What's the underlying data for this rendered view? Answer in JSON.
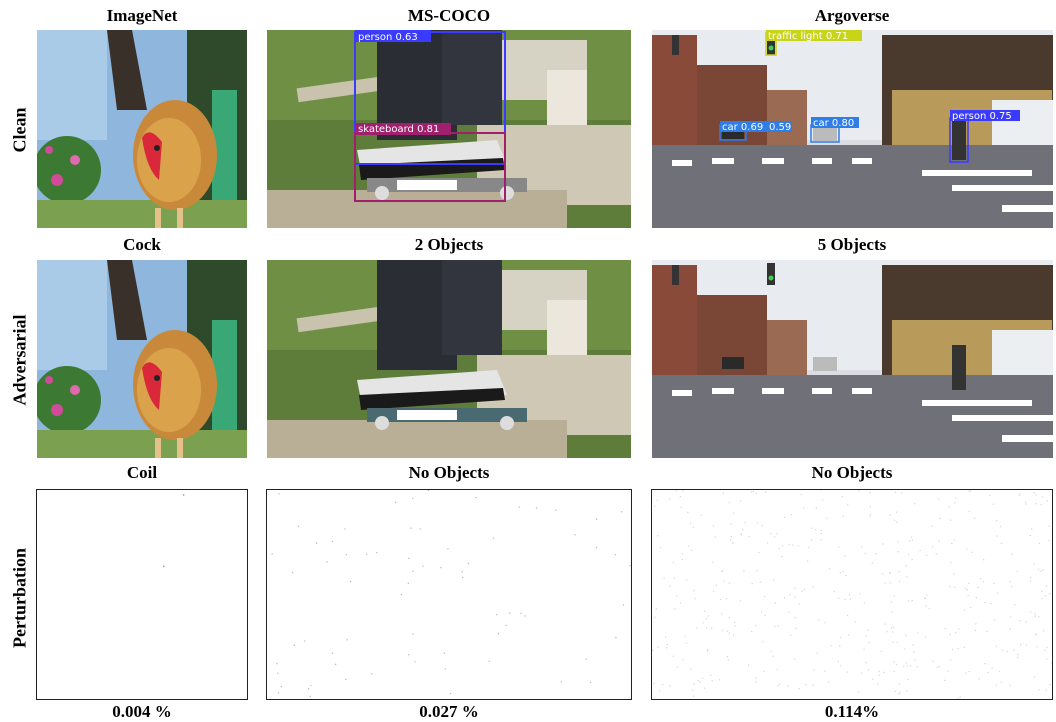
{
  "columns": [
    "ImageNet",
    "MS-COCO",
    "Argoverse"
  ],
  "rows": [
    "Clean",
    "Adversarial",
    "Perturbation"
  ],
  "clean_results": [
    "Cock",
    "2 Objects",
    "5 Objects"
  ],
  "adversarial_results": [
    "Coil",
    "No Objects",
    "No Objects"
  ],
  "perturbation_ratios": [
    "0.004 %",
    "0.027 %",
    "0.114%"
  ],
  "coco_detections": [
    "person 0.63",
    "skateboard 0.81"
  ],
  "argo_detections": [
    "traffic light 0.71",
    "car 0.69",
    "0.59",
    "car 0.80",
    "person 0.75"
  ],
  "colors": {
    "person_box": "#3b3bff",
    "skateboard_box": "#a0206e",
    "traffic_light_box": "#c8d41a",
    "car_box": "#2f7de8"
  }
}
